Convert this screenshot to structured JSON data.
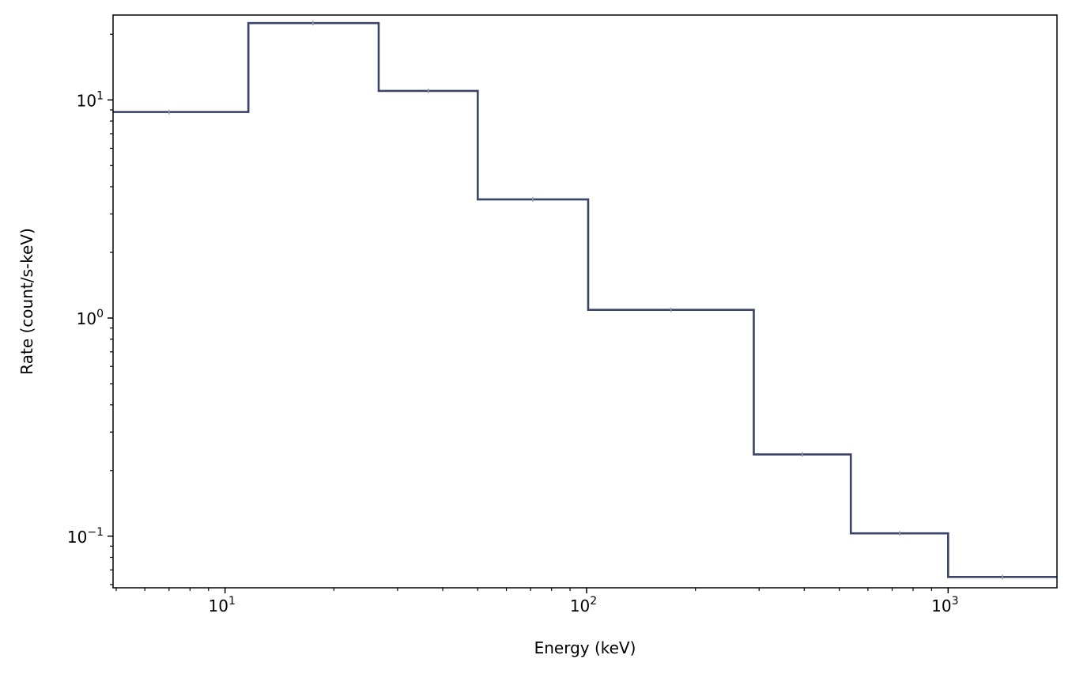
{
  "chart_data": {
    "type": "line",
    "subtype": "step-histogram",
    "title": "",
    "xlabel": "Energy (keV)",
    "ylabel": "Rate (count/s-keV)",
    "xscale": "log",
    "yscale": "log",
    "xlim": [
      4.9,
      2000
    ],
    "ylim": [
      0.058,
      24.5
    ],
    "grid": false,
    "legend": "none",
    "line_color": "#3a4468",
    "errorbar_color": "#9aa0aa",
    "x_ticks": [
      {
        "value": 10,
        "base": "10",
        "exp": "1"
      },
      {
        "value": 100,
        "base": "10",
        "exp": "2"
      },
      {
        "value": 1000,
        "base": "10",
        "exp": "3"
      }
    ],
    "y_ticks": [
      {
        "value": 0.1,
        "base": "10",
        "exp": "−1"
      },
      {
        "value": 1,
        "base": "10",
        "exp": "0"
      },
      {
        "value": 10,
        "base": "10",
        "exp": "1"
      }
    ],
    "bins": [
      {
        "lo": 4.9,
        "hi": 11.6,
        "rate": 8.8,
        "center": 7.0
      },
      {
        "lo": 11.6,
        "hi": 26.6,
        "rate": 22.5,
        "center": 17.5
      },
      {
        "lo": 26.6,
        "hi": 50.0,
        "rate": 11.0,
        "center": 36.5
      },
      {
        "lo": 50.0,
        "hi": 101.0,
        "rate": 3.5,
        "center": 71.0
      },
      {
        "lo": 101.0,
        "hi": 290.0,
        "rate": 1.09,
        "center": 171.0
      },
      {
        "lo": 290.0,
        "hi": 538.0,
        "rate": 0.237,
        "center": 395.0
      },
      {
        "lo": 538.0,
        "hi": 1000.0,
        "rate": 0.103,
        "center": 734.0
      },
      {
        "lo": 1000.0,
        "hi": 2000.0,
        "rate": 0.065,
        "center": 1414.0
      }
    ]
  }
}
